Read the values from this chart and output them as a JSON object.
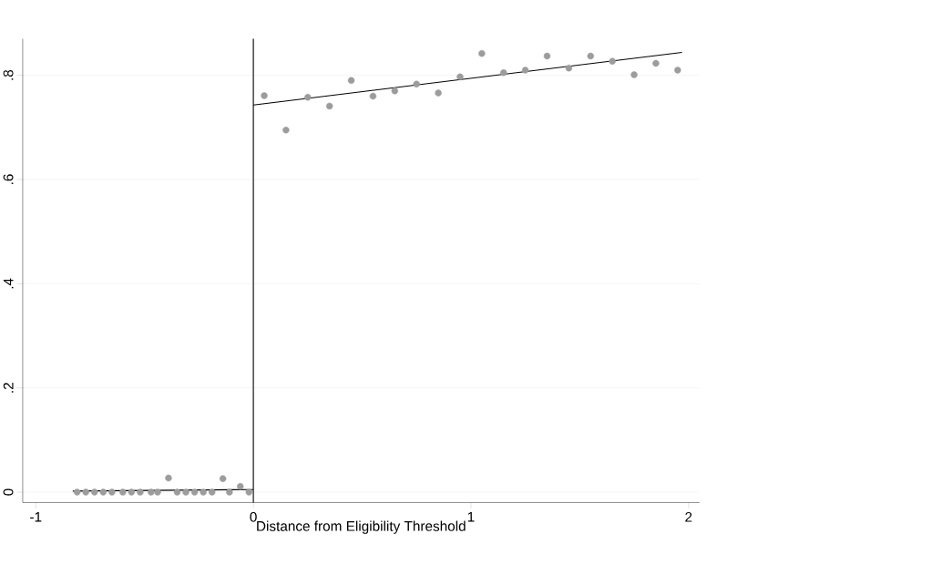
{
  "chart_data": {
    "type": "scatter",
    "xlabel": "Distance from Eligibility Threshold",
    "series": [
      {
        "color": "#9c9c9c",
        "marker": "circle",
        "x": [
          -0.81,
          -0.77,
          -0.73,
          -0.69,
          -0.65,
          -0.6,
          -0.56,
          -0.52,
          -0.47,
          -0.44,
          -0.39,
          -0.35,
          -0.31,
          -0.27,
          -0.23,
          -0.19,
          -0.14,
          -0.11,
          -0.06,
          -0.02,
          0.05,
          0.15,
          0.25,
          0.35,
          0.45,
          0.55,
          0.65,
          0.75,
          0.85,
          0.95,
          1.05,
          1.15,
          1.25,
          1.35,
          1.45,
          1.55,
          1.65,
          1.75,
          1.85,
          1.95
        ],
        "values": [
          0,
          0,
          0,
          0,
          0,
          0,
          0,
          0,
          0,
          0,
          0.027,
          0,
          0,
          0,
          0,
          0,
          0.026,
          0,
          0.011,
          0,
          0.761,
          0.695,
          0.758,
          0.741,
          0.79,
          0.76,
          0.77,
          0.783,
          0.766,
          0.797,
          0.842,
          0.805,
          0.81,
          0.837,
          0.814,
          0.837,
          0.827,
          0.801,
          0.823,
          0.81
        ]
      },
      {
        "type": "line",
        "color": "#000000",
        "marker": "none",
        "x": [
          -0.83,
          0
        ],
        "values": [
          0.002,
          0.005
        ]
      },
      {
        "type": "line",
        "color": "#000000",
        "marker": "none",
        "x": [
          0,
          1.97
        ],
        "values": [
          0.743,
          0.844
        ]
      }
    ],
    "xlim": [
      -1.06,
      2.05
    ],
    "ylim": [
      -0.02,
      0.87
    ],
    "xticks": [
      -1,
      0,
      1,
      2
    ],
    "yticks": [
      0,
      {
        "value": 0.2,
        "label": ".2"
      },
      {
        "value": 0.4,
        "label": ".4"
      },
      {
        "value": 0.6,
        "label": ".6"
      },
      {
        "value": 0.8,
        "label": ".8"
      }
    ],
    "grid": "y",
    "ref_lines": [
      {
        "axis": "x",
        "value": 0,
        "color": "#000000",
        "line_style": "solid"
      }
    ]
  }
}
